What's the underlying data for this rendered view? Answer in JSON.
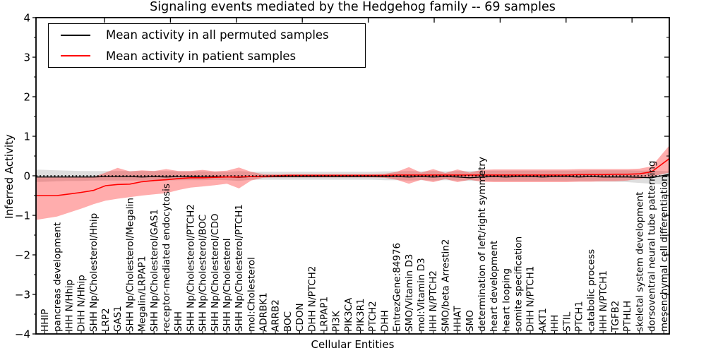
{
  "title": "Signaling events mediated by the Hedgehog family -- 69 samples",
  "legend": [
    {
      "label": "Mean activity in all permuted samples",
      "color": "#000000"
    },
    {
      "label": "Mean activity in patient samples",
      "color": "#ff0000"
    }
  ],
  "chart_data": {
    "type": "line",
    "title": "Signaling events mediated by the Hedgehog family -- 69 samples",
    "xlabel": "Cellular Entities",
    "ylabel": "Inferred Activity",
    "ylim": [
      -4,
      4
    ],
    "ytick_values": [
      4,
      3,
      2,
      1,
      0,
      -1,
      -2,
      -3,
      -4
    ],
    "ytick_labels": [
      "4",
      "3",
      "2",
      "1",
      "0",
      "−1",
      "−2",
      "−3",
      "−4"
    ],
    "grid": false,
    "legend_position": "upper left",
    "zero_line": {
      "y": 0,
      "style": "dotted",
      "color": "#000000"
    },
    "categories": [
      "HHIP",
      "pancreas development",
      "IHH N/Hhip",
      "DHH N/Hhip",
      "SHH Np/Cholesterol/Hhip",
      "LRP2",
      "GAS1",
      "SHH Np/Cholesterol/Megalin",
      "Megalin/LRPAP1",
      "SHH Np/Cholesterol/GAS1",
      "receptor-mediated endocytosis",
      "SHH",
      "SHH Np/Cholesterol/PTCH2",
      "SHH Np/Cholesterol/BOC",
      "SHH Np/Cholesterol/CDO",
      "SHH Np/Cholesterol",
      "SHH Np/Cholesterol/PTCH1",
      "mol:Cholesterol",
      "ADRBK1",
      "ARRB2",
      "BOC",
      "CDON",
      "DHH N/PTCH2",
      "LRPAP1",
      "PI3K",
      "PIK3CA",
      "PIK3R1",
      "PTCH2",
      "DHH",
      "EntrezGene:84976",
      "SMO/Vitamin D3",
      "mol:Vitamin D3",
      "IHH N/PTCH2",
      "SMO/beta Arrestin2",
      "HHAT",
      "SMO",
      "determination of left/right symmetry",
      "heart development",
      "heart looping",
      "somite specification",
      "DHH N/PTCH1",
      "AKT1",
      "IHH",
      "STIL",
      "PTCH1",
      "catabolic process",
      "IHH N/PTCH1",
      "TGFB2",
      "PTHLH",
      "skeletal system development",
      "dorsoventral neural tube patterning",
      "mesenchymal cell differentiation"
    ],
    "series": [
      {
        "name": "Mean activity in all permuted samples",
        "color": "#000000",
        "style": "solid",
        "values": [
          -0.03,
          -0.03,
          -0.03,
          -0.03,
          -0.03,
          -0.02,
          -0.02,
          -0.02,
          -0.03,
          -0.02,
          -0.03,
          -0.02,
          -0.02,
          -0.03,
          -0.02,
          -0.03,
          -0.04,
          -0.02,
          -0.02,
          -0.02,
          -0.02,
          -0.02,
          -0.02,
          -0.02,
          -0.02,
          -0.02,
          -0.02,
          -0.02,
          -0.02,
          -0.02,
          -0.03,
          -0.02,
          -0.03,
          -0.02,
          -0.03,
          -0.05,
          -0.03,
          -0.02,
          -0.03,
          -0.02,
          -0.02,
          -0.03,
          -0.02,
          -0.02,
          -0.03,
          -0.02,
          -0.03,
          -0.03,
          -0.03,
          -0.04,
          -0.05,
          0.01
        ]
      },
      {
        "name": "Mean activity in patient samples",
        "color": "#ff0000",
        "style": "solid",
        "values": [
          -0.5,
          -0.5,
          -0.46,
          -0.42,
          -0.37,
          -0.25,
          -0.22,
          -0.21,
          -0.15,
          -0.12,
          -0.1,
          -0.07,
          -0.05,
          -0.05,
          -0.04,
          -0.03,
          -0.03,
          -0.02,
          -0.01,
          0.0,
          0.01,
          0.01,
          0.01,
          0.01,
          0.01,
          0.01,
          0.01,
          0.01,
          0.01,
          0.02,
          0.02,
          0.02,
          0.02,
          0.02,
          0.02,
          0.02,
          0.02,
          0.02,
          0.02,
          0.02,
          0.02,
          0.02,
          0.02,
          0.02,
          0.03,
          0.03,
          0.03,
          0.04,
          0.04,
          0.05,
          0.1,
          0.33
        ]
      }
    ],
    "bands": [
      {
        "name": "permuted-samples-range",
        "fill": "rgba(125,125,125,0.25)",
        "upper": [
          0.15,
          0.14,
          0.13,
          0.12,
          0.12,
          0.12,
          0.12,
          0.12,
          0.12,
          0.12,
          0.12,
          0.11,
          0.11,
          0.11,
          0.1,
          0.1,
          0.12,
          0.1,
          0.1,
          0.1,
          0.1,
          0.1,
          0.1,
          0.1,
          0.1,
          0.1,
          0.1,
          0.1,
          0.11,
          0.11,
          0.12,
          0.11,
          0.12,
          0.11,
          0.12,
          0.12,
          0.13,
          0.13,
          0.13,
          0.13,
          0.13,
          0.13,
          0.13,
          0.13,
          0.13,
          0.14,
          0.14,
          0.14,
          0.14,
          0.13,
          0.13,
          0.12
        ],
        "lower": [
          -0.15,
          -0.14,
          -0.13,
          -0.13,
          -0.12,
          -0.12,
          -0.12,
          -0.12,
          -0.12,
          -0.12,
          -0.12,
          -0.11,
          -0.11,
          -0.11,
          -0.1,
          -0.11,
          -0.13,
          -0.1,
          -0.1,
          -0.1,
          -0.1,
          -0.1,
          -0.1,
          -0.1,
          -0.1,
          -0.1,
          -0.1,
          -0.1,
          -0.11,
          -0.11,
          -0.12,
          -0.11,
          -0.12,
          -0.11,
          -0.12,
          -0.13,
          -0.13,
          -0.13,
          -0.13,
          -0.13,
          -0.13,
          -0.13,
          -0.13,
          -0.13,
          -0.14,
          -0.14,
          -0.15,
          -0.15,
          -0.16,
          -0.18,
          -0.2,
          -0.22
        ]
      },
      {
        "name": "patient-samples-range",
        "fill": "rgba(255,0,0,0.32)",
        "upper": [
          -0.04,
          -0.04,
          -0.04,
          -0.04,
          -0.03,
          0.08,
          0.2,
          0.11,
          0.14,
          0.12,
          0.17,
          0.12,
          0.12,
          0.15,
          0.11,
          0.13,
          0.21,
          0.1,
          0.04,
          0.04,
          0.04,
          0.04,
          0.04,
          0.04,
          0.04,
          0.04,
          0.04,
          0.04,
          0.05,
          0.1,
          0.22,
          0.08,
          0.17,
          0.07,
          0.16,
          0.08,
          0.15,
          0.16,
          0.16,
          0.16,
          0.16,
          0.16,
          0.16,
          0.16,
          0.17,
          0.17,
          0.17,
          0.17,
          0.17,
          0.18,
          0.24,
          0.6
        ],
        "lower": [
          -1.08,
          -1.03,
          -0.93,
          -0.83,
          -0.72,
          -0.63,
          -0.58,
          -0.54,
          -0.5,
          -0.47,
          -0.44,
          -0.36,
          -0.3,
          -0.27,
          -0.24,
          -0.2,
          -0.32,
          -0.12,
          -0.05,
          -0.04,
          -0.04,
          -0.04,
          -0.04,
          -0.04,
          -0.04,
          -0.04,
          -0.04,
          -0.04,
          -0.05,
          -0.1,
          -0.2,
          -0.1,
          -0.16,
          -0.08,
          -0.16,
          -0.1,
          -0.15,
          -0.16,
          -0.16,
          -0.16,
          -0.16,
          -0.16,
          -0.16,
          -0.16,
          -0.15,
          -0.15,
          -0.14,
          -0.14,
          -0.12,
          -0.08,
          -0.02,
          0.05
        ]
      }
    ]
  }
}
